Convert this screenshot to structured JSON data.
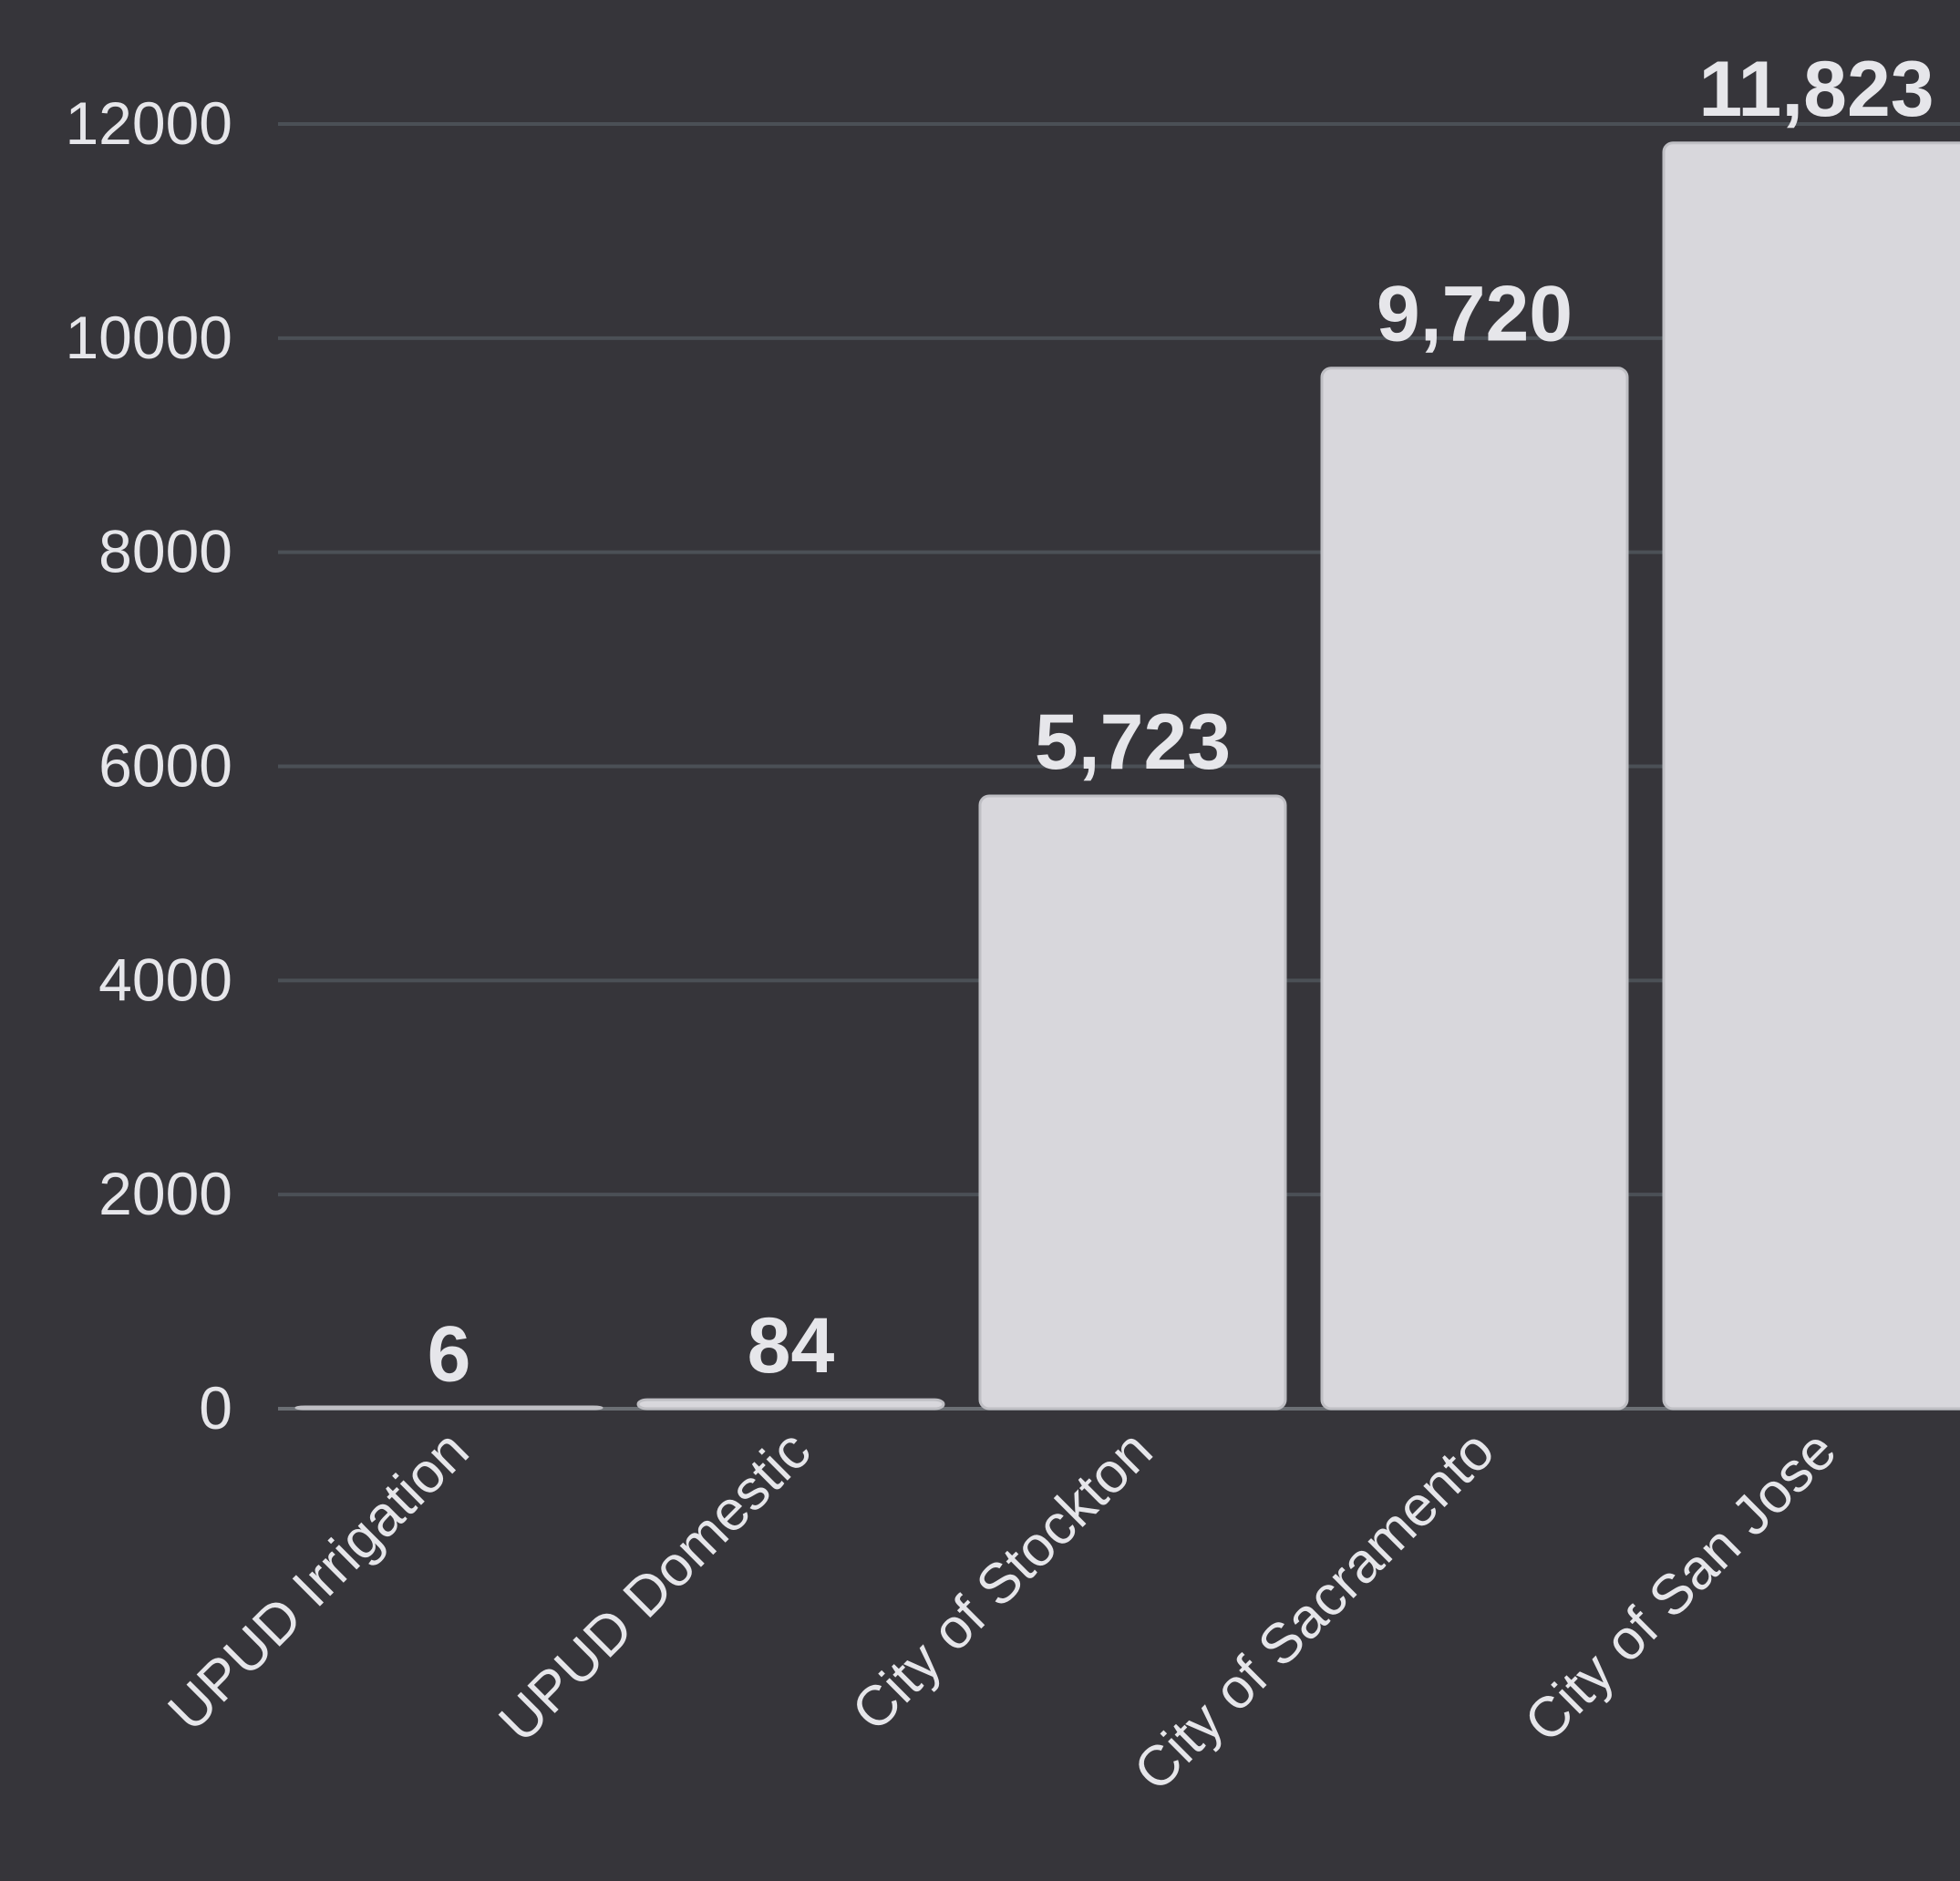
{
  "chart_data": {
    "type": "bar",
    "categories": [
      "UPUD Irrigation",
      "UPUD Domestic",
      "City of Stockton",
      "City of Sacramento",
      "City of San Jose"
    ],
    "values": [
      6,
      84,
      5723,
      9720,
      11823
    ],
    "value_labels": [
      "6",
      "84",
      "5,723",
      "9,720",
      "11,823"
    ],
    "y_ticks": [
      "0",
      "2000",
      "4000",
      "6000",
      "8000",
      "10000",
      "12000"
    ],
    "ylim": [
      0,
      12000
    ],
    "grid": true,
    "title": "",
    "xlabel": "",
    "ylabel": "",
    "colors": {
      "background": "#36353a",
      "bar": "#d8d7dc",
      "text": "#e6e6ea",
      "grid": "#4b5056"
    }
  }
}
